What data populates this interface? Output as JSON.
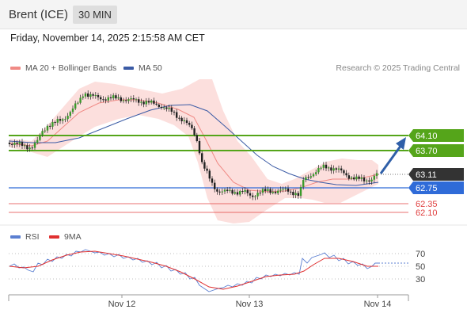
{
  "header": {
    "instrument": "Brent (ICE)",
    "timeframe": "30 MIN"
  },
  "datetime": "Friday, November 14, 2025 2:15:58 AM CET",
  "legend": {
    "bb": {
      "label": "MA 20 + Bollinger Bands",
      "color": "#f08a85"
    },
    "ma50": {
      "label": "MA 50",
      "color": "#3b5ba5"
    }
  },
  "copyright": "Research © 2025 Trading Central",
  "rsi_legend": {
    "rsi": {
      "label": "RSI",
      "color": "#5b7fd1"
    },
    "ma9": {
      "label": "9MA",
      "color": "#e03030"
    }
  },
  "price_levels": [
    {
      "label": "64.10",
      "color": "#55a51a",
      "style": "resistance"
    },
    {
      "label": "63.70",
      "color": "#55a51a",
      "style": "resistance"
    },
    {
      "label": "63.11",
      "color": "#333333",
      "style": "last"
    },
    {
      "label": "62.75",
      "color": "#2f6bd8",
      "style": "pivot"
    },
    {
      "label": "62.35",
      "color": "#e04040",
      "style": "support"
    },
    {
      "label": "62.10",
      "color": "#e04040",
      "style": "support"
    }
  ],
  "rsi_levels": [
    "70",
    "50",
    "30"
  ],
  "x_labels": [
    "Nov 12",
    "Nov 13",
    "Nov 14"
  ]
}
